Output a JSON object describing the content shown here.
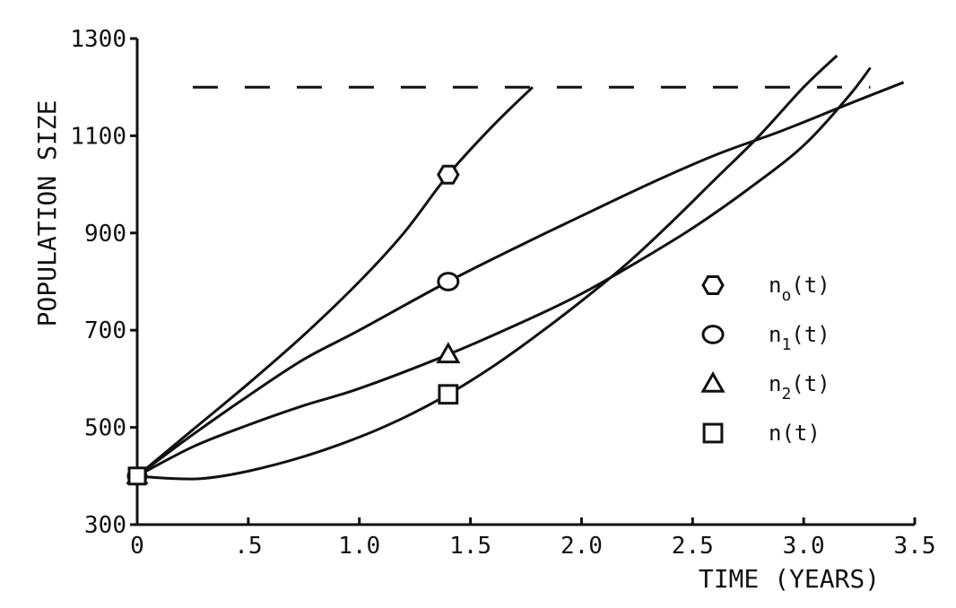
{
  "chart_data": {
    "type": "line",
    "xlabel": "TIME (YEARS)",
    "ylabel": "POPULATION SIZE",
    "xlim": [
      0,
      3.5
    ],
    "ylim": [
      300,
      1300
    ],
    "x_ticks": [
      {
        "value": 0,
        "label": "0"
      },
      {
        "value": 0.5,
        "label": ".5"
      },
      {
        "value": 1.0,
        "label": "1.0"
      },
      {
        "value": 1.5,
        "label": "1.5"
      },
      {
        "value": 2.0,
        "label": "2.0"
      },
      {
        "value": 2.5,
        "label": "2.5"
      },
      {
        "value": 3.0,
        "label": "3.0"
      },
      {
        "value": 3.5,
        "label": "3.5"
      }
    ],
    "y_ticks": [
      {
        "value": 300,
        "label": "300"
      },
      {
        "value": 500,
        "label": "500"
      },
      {
        "value": 700,
        "label": "700"
      },
      {
        "value": 900,
        "label": "900"
      },
      {
        "value": 1100,
        "label": "1100"
      },
      {
        "value": 1300,
        "label": "1300"
      }
    ],
    "grid": false,
    "legend_position": "right",
    "reference_line": {
      "y": 1200,
      "style": "dashed",
      "x_range": [
        0.25,
        3.3
      ]
    },
    "series": [
      {
        "name": "n0(t)",
        "label_main": "n",
        "label_sub": "o",
        "label_suffix": "(t)",
        "marker": "hexagon",
        "marker_point": {
          "x": 1.4,
          "y": 1020
        },
        "x": [
          0,
          0.25,
          0.5,
          0.75,
          1.0,
          1.2,
          1.4,
          1.6,
          1.78
        ],
        "y": [
          400,
          495,
          590,
          690,
          800,
          900,
          1020,
          1120,
          1200
        ]
      },
      {
        "name": "n1(t)",
        "label_main": "n",
        "label_sub": "1",
        "label_suffix": "(t)",
        "marker": "circle",
        "marker_point": {
          "x": 1.4,
          "y": 800
        },
        "x": [
          0,
          0.25,
          0.5,
          0.75,
          1.0,
          1.4,
          1.75,
          2.0,
          2.3,
          2.6,
          2.9,
          3.2,
          3.45
        ],
        "y": [
          400,
          485,
          565,
          640,
          700,
          800,
          880,
          935,
          1000,
          1060,
          1110,
          1165,
          1210
        ]
      },
      {
        "name": "n2(t)",
        "label_main": "n",
        "label_sub": "2",
        "label_suffix": "(t)",
        "marker": "triangle",
        "marker_point": {
          "x": 1.4,
          "y": 650
        },
        "x": [
          0,
          0.25,
          0.5,
          0.75,
          1.0,
          1.4,
          1.75,
          2.0,
          2.25,
          2.5,
          2.75,
          3.0,
          3.2,
          3.3
        ],
        "y": [
          400,
          460,
          505,
          545,
          580,
          650,
          720,
          775,
          840,
          910,
          990,
          1080,
          1180,
          1240
        ]
      },
      {
        "name": "n(t)",
        "label_main": "n",
        "label_sub": "",
        "label_suffix": "(t)",
        "marker": "square",
        "marker_point": {
          "x": 1.4,
          "y": 568
        },
        "x": [
          0,
          0.15,
          0.3,
          0.5,
          0.75,
          1.0,
          1.2,
          1.4,
          1.6,
          1.8,
          2.0,
          2.2,
          2.4,
          2.6,
          2.8,
          3.0,
          3.15
        ],
        "y": [
          400,
          395,
          395,
          410,
          440,
          480,
          520,
          568,
          625,
          690,
          760,
          835,
          920,
          1010,
          1100,
          1200,
          1265
        ]
      }
    ]
  }
}
